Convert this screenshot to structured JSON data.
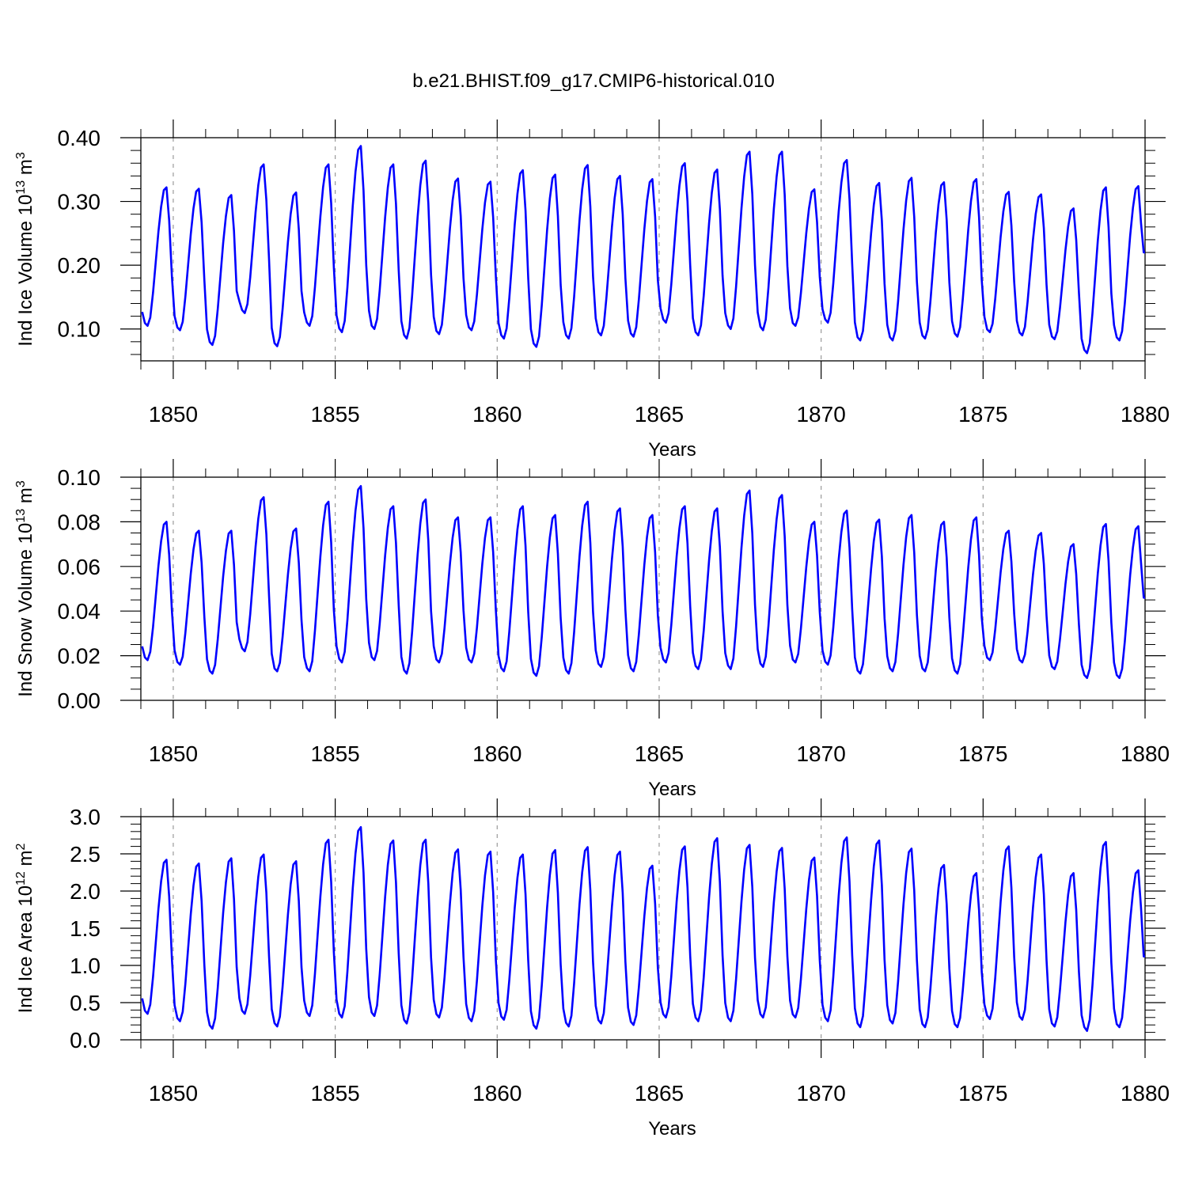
{
  "figure": {
    "title": "b.e21.BHIST.f09_g17.CMIP6-historical.010",
    "line_color": "#0000ff",
    "grid_color": "#9a9a9a",
    "axis_color": "#000000"
  },
  "chart_data": [
    {
      "type": "line",
      "ylabel_main": "Ind Ice Volume 10",
      "ylabel_exp": "13",
      "ylabel_tail": " m",
      "ylabel_unit_exp": "3",
      "xlabel": "Years",
      "xlim": [
        1849,
        1880
      ],
      "ylim": [
        0.05,
        0.4
      ],
      "yticks": [
        0.1,
        0.2,
        0.3,
        0.4
      ],
      "ytick_labels": [
        "0.10",
        "0.20",
        "0.30",
        "0.40"
      ],
      "yminor_step": 0.02,
      "xticks": [
        1850,
        1855,
        1860,
        1865,
        1870,
        1875,
        1880
      ],
      "xtick_labels": [
        "1850",
        "1855",
        "1860",
        "1865",
        "1870",
        "1875",
        "1880"
      ],
      "xminor_step": 1,
      "grid": "dashed vertical at major x ticks",
      "series": [
        {
          "name": "Ind Ice Volume",
          "x_start": 1849.0417,
          "x_step": 0.0833333,
          "minima": [
            0.105,
            0.098,
            0.075,
            0.125,
            0.073,
            0.105,
            0.095,
            0.1,
            0.085,
            0.092,
            0.098,
            0.085,
            0.072,
            0.085,
            0.09,
            0.088,
            0.11,
            0.09,
            0.1,
            0.098,
            0.105,
            0.11,
            0.082,
            0.082,
            0.085,
            0.088,
            0.095,
            0.09,
            0.084,
            0.062,
            0.082
          ],
          "maxima": [
            0.322,
            0.32,
            0.31,
            0.358,
            0.314,
            0.358,
            0.387,
            0.358,
            0.364,
            0.336,
            0.331,
            0.349,
            0.342,
            0.357,
            0.34,
            0.335,
            0.36,
            0.35,
            0.378,
            0.378,
            0.319,
            0.365,
            0.329,
            0.337,
            0.33,
            0.335,
            0.315,
            0.311,
            0.289,
            0.322,
            0.324
          ],
          "end_value": 0.22
        }
      ]
    },
    {
      "type": "line",
      "ylabel_main": "Ind Snow Volume 10",
      "ylabel_exp": "13",
      "ylabel_tail": " m",
      "ylabel_unit_exp": "3",
      "xlabel": "Years",
      "xlim": [
        1849,
        1880
      ],
      "ylim": [
        0.0,
        0.1
      ],
      "yticks": [
        0.0,
        0.02,
        0.04,
        0.06,
        0.08,
        0.1
      ],
      "ytick_labels": [
        "0.00",
        "0.02",
        "0.04",
        "0.06",
        "0.08",
        "0.10"
      ],
      "yminor_step": 0.005,
      "xticks": [
        1850,
        1855,
        1860,
        1865,
        1870,
        1875,
        1880
      ],
      "xtick_labels": [
        "1850",
        "1855",
        "1860",
        "1865",
        "1870",
        "1875",
        "1880"
      ],
      "xminor_step": 1,
      "grid": "dashed vertical at major x ticks",
      "series": [
        {
          "name": "Ind Snow Volume",
          "x_start": 1849.0417,
          "x_step": 0.0833333,
          "minima": [
            0.018,
            0.016,
            0.012,
            0.022,
            0.013,
            0.013,
            0.017,
            0.018,
            0.012,
            0.017,
            0.017,
            0.013,
            0.011,
            0.012,
            0.015,
            0.013,
            0.017,
            0.014,
            0.014,
            0.015,
            0.017,
            0.016,
            0.012,
            0.013,
            0.013,
            0.012,
            0.018,
            0.017,
            0.014,
            0.01,
            0.01
          ],
          "maxima": [
            0.08,
            0.076,
            0.076,
            0.091,
            0.077,
            0.089,
            0.096,
            0.087,
            0.09,
            0.082,
            0.082,
            0.087,
            0.083,
            0.089,
            0.086,
            0.083,
            0.087,
            0.086,
            0.094,
            0.092,
            0.08,
            0.085,
            0.081,
            0.083,
            0.08,
            0.082,
            0.076,
            0.075,
            0.07,
            0.079,
            0.078
          ],
          "end_value": 0.046
        }
      ]
    },
    {
      "type": "line",
      "ylabel_main": "Ind Ice Area 10",
      "ylabel_exp": "12",
      "ylabel_tail": " m",
      "ylabel_unit_exp": "2",
      "xlabel": "Years",
      "xlim": [
        1849,
        1880
      ],
      "ylim": [
        0.0,
        3.0
      ],
      "yticks": [
        0.0,
        0.5,
        1.0,
        1.5,
        2.0,
        2.5,
        3.0
      ],
      "ytick_labels": [
        "0.0",
        "0.5",
        "1.0",
        "1.5",
        "2.0",
        "2.5",
        "3.0"
      ],
      "yminor_step": 0.1,
      "xticks": [
        1850,
        1855,
        1860,
        1865,
        1870,
        1875,
        1880
      ],
      "xtick_labels": [
        "1850",
        "1855",
        "1860",
        "1865",
        "1870",
        "1875",
        "1880"
      ],
      "xminor_step": 1,
      "grid": "dashed vertical at major x ticks",
      "series": [
        {
          "name": "Ind Ice Area",
          "x_start": 1849.0417,
          "x_step": 0.0833333,
          "minima": [
            0.35,
            0.25,
            0.15,
            0.35,
            0.18,
            0.32,
            0.3,
            0.32,
            0.22,
            0.3,
            0.25,
            0.27,
            0.15,
            0.18,
            0.22,
            0.2,
            0.3,
            0.25,
            0.25,
            0.3,
            0.3,
            0.25,
            0.17,
            0.22,
            0.17,
            0.17,
            0.28,
            0.27,
            0.18,
            0.12,
            0.17
          ],
          "maxima": [
            2.42,
            2.37,
            2.44,
            2.49,
            2.4,
            2.69,
            2.86,
            2.68,
            2.69,
            2.56,
            2.53,
            2.49,
            2.55,
            2.59,
            2.53,
            2.34,
            2.6,
            2.71,
            2.62,
            2.58,
            2.45,
            2.72,
            2.68,
            2.57,
            2.35,
            2.24,
            2.6,
            2.49,
            2.24,
            2.66,
            2.28
          ],
          "end_value": 1.12
        }
      ]
    }
  ]
}
